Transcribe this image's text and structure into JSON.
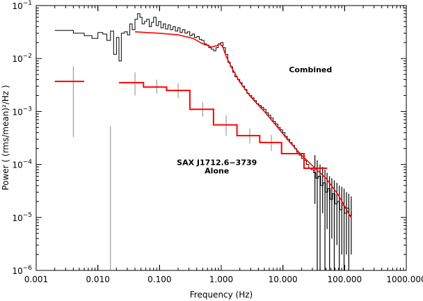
{
  "chart_data": {
    "type": "line",
    "xlabel": "Frequency (Hz)",
    "ylabel": "Power ( (rms/mean)²/Hz )",
    "x_scale": "log",
    "y_scale": "log",
    "xlim": [
      0.001,
      1000
    ],
    "ylim": [
      1e-06,
      0.1
    ],
    "grid": false,
    "x_ticks": [
      {
        "value": 0.001,
        "label": "0.001"
      },
      {
        "value": 0.01,
        "label": "0.010"
      },
      {
        "value": 0.1,
        "label": "0.100"
      },
      {
        "value": 1,
        "label": "1.000"
      },
      {
        "value": 10,
        "label": "10.000"
      },
      {
        "value": 100,
        "label": "100.000"
      },
      {
        "value": 1000,
        "label": "1000.000"
      }
    ],
    "y_ticks": [
      {
        "value": 1e-06,
        "base": "10",
        "exp": "−6"
      },
      {
        "value": 1e-05,
        "base": "10",
        "exp": "−5"
      },
      {
        "value": 0.0001,
        "base": "10",
        "exp": "−4"
      },
      {
        "value": 0.001,
        "base": "10",
        "exp": "−3"
      },
      {
        "value": 0.01,
        "base": "10",
        "exp": "−2"
      },
      {
        "value": 0.1,
        "base": "10",
        "exp": "−1"
      }
    ],
    "annotations": [
      {
        "text": "Combined",
        "x": 28,
        "y": 0.0055,
        "anchor": "middle"
      },
      {
        "text": "SAX J1712.6−3739",
        "x": 0.85,
        "y": 9.8e-05,
        "anchor": "middle"
      },
      {
        "text": "Alone",
        "x": 0.85,
        "y": 6.8e-05,
        "anchor": "middle"
      }
    ],
    "series": [
      {
        "role": "combined-data",
        "color": "#000000",
        "points": [
          [
            0.002,
            0.034
          ],
          [
            0.004,
            0.03
          ],
          [
            0.006,
            0.027
          ],
          [
            0.008,
            0.024
          ],
          [
            0.01,
            0.031
          ],
          [
            0.012,
            0.029
          ],
          [
            0.014,
            0.022
          ],
          [
            0.016,
            0.033
          ],
          [
            0.018,
            0.012
          ],
          [
            0.02,
            0.025
          ],
          [
            0.022,
            0.009
          ],
          [
            0.024,
            0.03
          ],
          [
            0.027,
            0.032
          ],
          [
            0.03,
            0.028
          ],
          [
            0.033,
            0.045
          ],
          [
            0.036,
            0.035
          ],
          [
            0.04,
            0.055
          ],
          [
            0.044,
            0.07
          ],
          [
            0.048,
            0.06
          ],
          [
            0.052,
            0.045
          ],
          [
            0.057,
            0.05
          ],
          [
            0.062,
            0.055
          ],
          [
            0.068,
            0.04
          ],
          [
            0.074,
            0.048
          ],
          [
            0.08,
            0.06
          ],
          [
            0.088,
            0.042
          ],
          [
            0.096,
            0.05
          ],
          [
            0.105,
            0.038
          ],
          [
            0.115,
            0.045
          ],
          [
            0.125,
            0.036
          ],
          [
            0.137,
            0.043
          ],
          [
            0.15,
            0.035
          ],
          [
            0.165,
            0.04
          ],
          [
            0.18,
            0.033
          ],
          [
            0.198,
            0.038
          ],
          [
            0.215,
            0.031
          ],
          [
            0.235,
            0.035
          ],
          [
            0.258,
            0.03
          ],
          [
            0.282,
            0.032
          ],
          [
            0.308,
            0.027
          ],
          [
            0.337,
            0.029
          ],
          [
            0.368,
            0.025
          ],
          [
            0.402,
            0.026
          ],
          [
            0.44,
            0.023
          ],
          [
            0.481,
            0.022
          ],
          [
            0.526,
            0.019
          ],
          [
            0.575,
            0.018
          ],
          [
            0.628,
            0.016
          ],
          [
            0.687,
            0.015
          ],
          [
            0.751,
            0.014
          ],
          [
            0.821,
            0.016
          ],
          [
            0.897,
            0.019
          ],
          [
            0.98,
            0.02
          ],
          [
            1.07,
            0.016
          ],
          [
            1.17,
            0.012
          ],
          [
            1.28,
            0.0085
          ],
          [
            1.4,
            0.007
          ],
          [
            1.53,
            0.0055
          ],
          [
            1.67,
            0.0045
          ],
          [
            1.83,
            0.004
          ],
          [
            2.0,
            0.0035
          ],
          [
            2.18,
            0.003
          ],
          [
            2.39,
            0.0026
          ],
          [
            2.61,
            0.0022
          ],
          [
            2.85,
            0.002
          ],
          [
            3.12,
            0.0018
          ],
          [
            3.41,
            0.0016
          ],
          [
            3.72,
            0.0014
          ],
          [
            4.07,
            0.0013
          ],
          [
            4.45,
            0.0012
          ],
          [
            4.86,
            0.0011
          ],
          [
            5.31,
            0.00095
          ],
          [
            5.8,
            0.00085
          ],
          [
            6.34,
            0.00075
          ],
          [
            6.93,
            0.00065
          ],
          [
            7.57,
            0.00058
          ],
          [
            8.27,
            0.0005
          ],
          [
            9.04,
            0.00045
          ],
          [
            9.88,
            0.0004
          ],
          [
            10.8,
            0.00034
          ],
          [
            11.8,
            0.0003
          ],
          [
            12.9,
            0.00026
          ],
          [
            14.1,
            0.00023
          ],
          [
            15.4,
            0.0002
          ],
          [
            16.8,
            0.00017
          ],
          [
            18.4,
            0.00015
          ],
          [
            20.1,
            0.00013
          ],
          [
            22.0,
            0.00012
          ],
          [
            24.0,
            0.0001
          ],
          [
            26.2,
            8.5e-05
          ],
          [
            28.7,
            8e-05
          ],
          [
            31.3,
            7e-05
          ],
          [
            34.2,
            5.5e-05
          ],
          [
            37.4,
            6e-05
          ],
          [
            40.9,
            4e-05
          ],
          [
            44.7,
            4.5e-05
          ],
          [
            48.8,
            3e-05
          ],
          [
            53.3,
            3.5e-05
          ],
          [
            58.3,
            2.2e-05
          ],
          [
            63.7,
            2.8e-05
          ],
          [
            69.6,
            1.8e-05
          ],
          [
            76.1,
            2e-05
          ],
          [
            83.1,
            1.4e-05
          ],
          [
            90.8,
            1.7e-05
          ],
          [
            99.2,
            1.2e-05
          ],
          [
            108.0,
            1.5e-05
          ],
          [
            118.0,
            1.1e-05
          ],
          [
            129.0,
            1.3e-05
          ]
        ]
      },
      {
        "role": "combined-model",
        "color": "#ff0000",
        "points": [
          [
            0.04,
            0.032
          ],
          [
            0.06,
            0.031
          ],
          [
            0.1,
            0.03
          ],
          [
            0.2,
            0.028
          ],
          [
            0.35,
            0.024
          ],
          [
            0.5,
            0.019
          ],
          [
            0.7,
            0.0165
          ],
          [
            0.85,
            0.0175
          ],
          [
            0.95,
            0.019
          ],
          [
            1.05,
            0.017
          ],
          [
            1.2,
            0.011
          ],
          [
            1.5,
            0.0065
          ],
          [
            2,
            0.0036
          ],
          [
            3,
            0.0019
          ],
          [
            5,
            0.001
          ],
          [
            8,
            0.00052
          ],
          [
            12,
            0.00029
          ],
          [
            20,
            0.00015
          ],
          [
            30,
            9.5e-05
          ],
          [
            50,
            5.5e-05
          ],
          [
            80,
            2.6e-05
          ],
          [
            130,
            9.5e-06
          ]
        ]
      },
      {
        "role": "alone-model",
        "color": "#ff0000",
        "points": [
          [
            0.002,
            0.0037
          ],
          [
            0.006,
            0.0037
          ],
          null,
          [
            0.022,
            0.0035
          ],
          [
            0.055,
            0.0035
          ],
          [
            0.055,
            0.0029
          ],
          [
            0.13,
            0.0029
          ],
          [
            0.13,
            0.0025
          ],
          [
            0.31,
            0.0025
          ],
          [
            0.31,
            0.0011
          ],
          [
            0.75,
            0.0011
          ],
          [
            0.75,
            0.00056
          ],
          [
            1.8,
            0.00056
          ],
          [
            1.8,
            0.00035
          ],
          [
            4.2,
            0.00035
          ],
          [
            4.2,
            0.00026
          ],
          [
            9.5,
            0.00026
          ],
          [
            9.5,
            0.00016
          ],
          [
            22,
            0.00016
          ],
          [
            22,
            8.5e-05
          ],
          [
            52,
            8.5e-05
          ]
        ]
      }
    ],
    "error_bars": [
      {
        "x": 0.004,
        "low": 0.00033,
        "high": 0.0072,
        "color": "#888888"
      },
      {
        "x": 0.016,
        "low": 1e-06,
        "high": 0.00053,
        "color": "#888888"
      },
      {
        "x": 0.04,
        "low": 0.002,
        "high": 0.0055,
        "color": "#888888"
      },
      {
        "x": 0.09,
        "low": 0.0022,
        "high": 0.004,
        "color": "#888888"
      },
      {
        "x": 0.2,
        "low": 0.0018,
        "high": 0.0034,
        "color": "#888888"
      },
      {
        "x": 0.5,
        "low": 0.0008,
        "high": 0.0015,
        "color": "#888888"
      },
      {
        "x": 1.2,
        "low": 0.00035,
        "high": 0.00085,
        "color": "#888888"
      },
      {
        "x": 2.9,
        "low": 0.00025,
        "high": 0.00048,
        "color": "#888888"
      },
      {
        "x": 6.5,
        "low": 0.00018,
        "high": 0.00036,
        "color": "#888888"
      }
    ],
    "noise_bars": [
      {
        "x": 33,
        "low": 1.8e-05,
        "high": 0.00015
      },
      {
        "x": 36,
        "low": 1e-06,
        "high": 0.00012
      },
      {
        "x": 40,
        "low": 1e-06,
        "high": 0.0001
      },
      {
        "x": 44,
        "low": 1.2e-05,
        "high": 9e-05
      },
      {
        "x": 48,
        "low": 1e-06,
        "high": 8e-05
      },
      {
        "x": 52,
        "low": 6e-06,
        "high": 7e-05
      },
      {
        "x": 57,
        "low": 1e-06,
        "high": 6e-05
      },
      {
        "x": 62,
        "low": 4e-06,
        "high": 5.5e-05
      },
      {
        "x": 68,
        "low": 1e-06,
        "high": 5e-05
      },
      {
        "x": 75,
        "low": 3e-06,
        "high": 4.5e-05
      },
      {
        "x": 82,
        "low": 1e-06,
        "high": 4e-05
      },
      {
        "x": 90,
        "low": 2e-06,
        "high": 3.8e-05
      },
      {
        "x": 98,
        "low": 1e-06,
        "high": 3.5e-05
      },
      {
        "x": 107,
        "low": 2e-06,
        "high": 3e-05
      },
      {
        "x": 117,
        "low": 1e-06,
        "high": 2.8e-05
      },
      {
        "x": 128,
        "low": 2e-06,
        "high": 2.5e-05
      }
    ]
  }
}
